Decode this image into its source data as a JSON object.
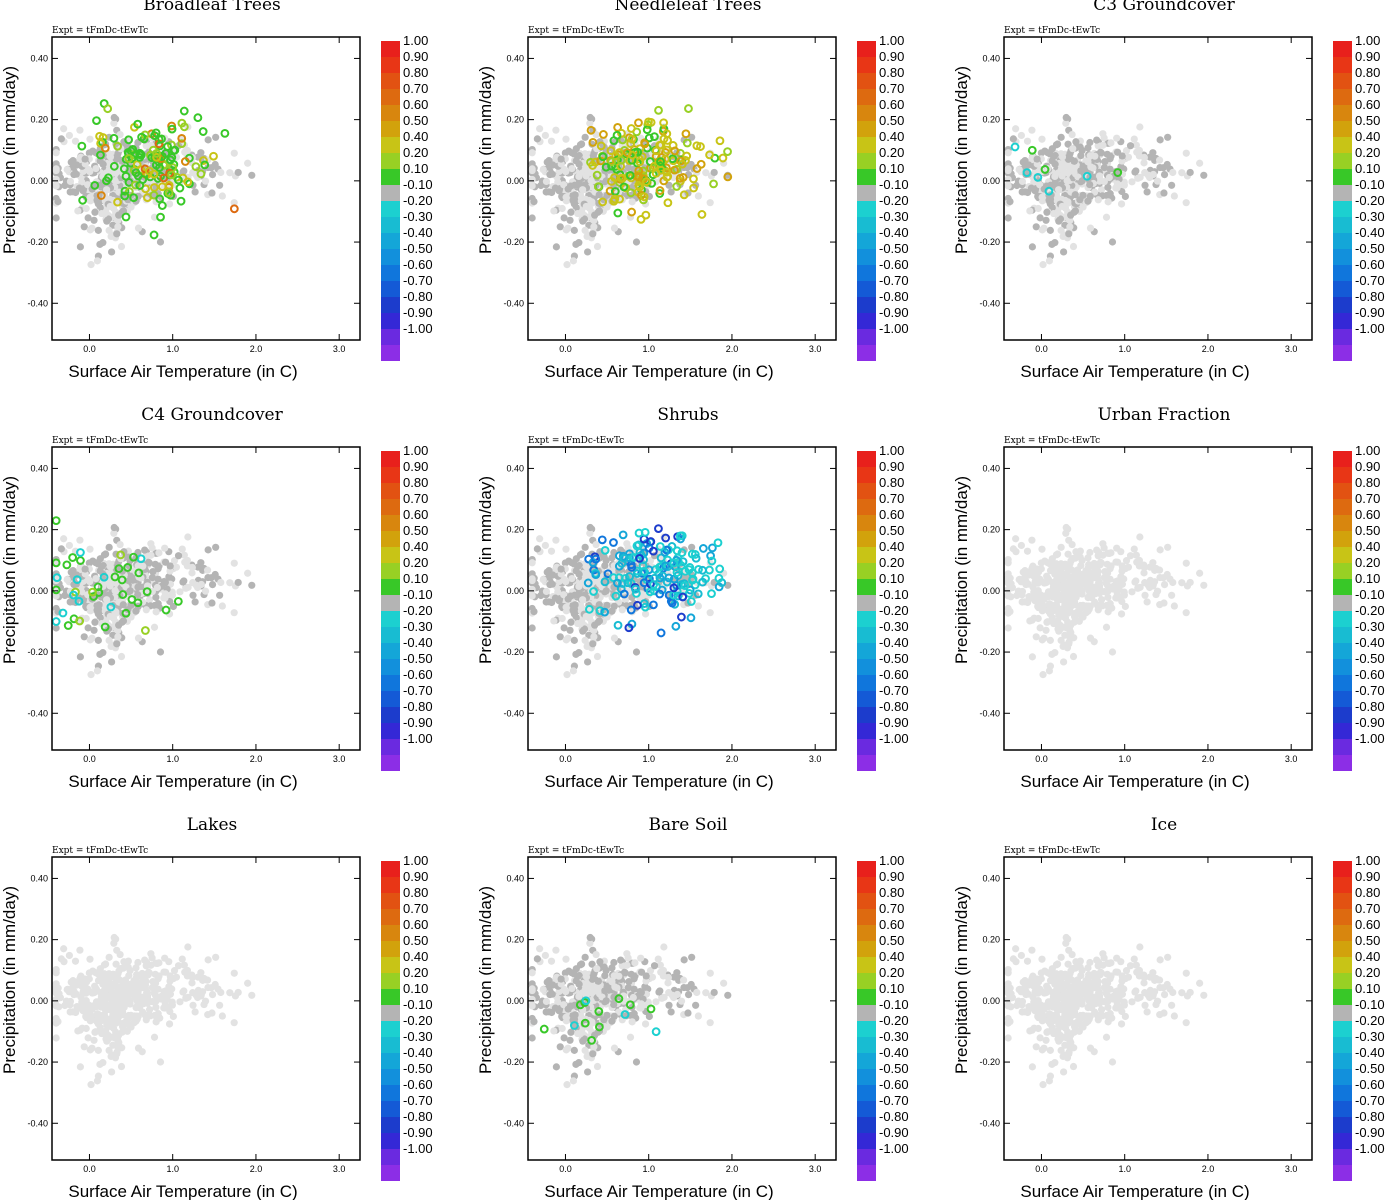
{
  "figure": {
    "expt_label": "Expt = tFmDc-tEwTc",
    "xlabel": "Surface Air Temperature (in C)",
    "ylabel": "Precipitation (in mm/day)",
    "xlim": [
      -0.45,
      3.25
    ],
    "ylim": [
      -0.52,
      0.47
    ],
    "xticks": [
      "0.0",
      "1.0",
      "2.0",
      "3.0"
    ],
    "yticks": [
      "0.40",
      "0.20",
      "0.00",
      "-0.20",
      "-0.40"
    ],
    "colorbar": {
      "labels": [
        "1.00",
        "0.90",
        "0.80",
        "0.70",
        "0.60",
        "0.50",
        "0.40",
        "0.20",
        "0.10",
        "-0.10",
        "-0.20",
        "-0.30",
        "-0.40",
        "-0.50",
        "-0.60",
        "-0.70",
        "-0.80",
        "-0.90",
        "-1.00"
      ],
      "colors": [
        "#e8201c",
        "#e83616",
        "#e25212",
        "#dd6a10",
        "#d8860e",
        "#d2a20c",
        "#c8c416",
        "#98d024",
        "#38c828",
        "#b4b4b4",
        "#1cd0d0",
        "#18bcd2",
        "#14a6d8",
        "#1290dc",
        "#1076dc",
        "#145ad6",
        "#1c3ccc",
        "#3428d6",
        "#6a2ae0",
        "#8c2ee6"
      ]
    },
    "colors": {
      "gray_light": "#e2e2e2",
      "gray_mid": "#b4b4b4",
      "frame": "#000000"
    }
  },
  "chart_data": [
    {
      "type": "scatter",
      "title": "Broadleaf Trees",
      "highlight": {
        "n": 140,
        "mode": "green-yellow",
        "cx": 0.75,
        "cy": 0.06
      }
    },
    {
      "type": "scatter",
      "title": "Needleleaf Trees",
      "highlight": {
        "n": 180,
        "mode": "yellow-green",
        "cx": 0.95,
        "cy": 0.06
      }
    },
    {
      "type": "scatter",
      "title": "C3 Groundcover",
      "highlight": {
        "n": 8,
        "mode": "few-green",
        "cx": 0.1,
        "cy": 0.03
      }
    },
    {
      "type": "scatter",
      "title": "C4 Groundcover",
      "highlight": {
        "n": 40,
        "mode": "green-left",
        "cx": 0.05,
        "cy": -0.02
      }
    },
    {
      "type": "scatter",
      "title": "Shrubs",
      "highlight": {
        "n": 170,
        "mode": "blue",
        "cx": 1.1,
        "cy": 0.06
      }
    },
    {
      "type": "scatter",
      "title": "Urban Fraction",
      "highlight": {
        "n": 0,
        "mode": "none",
        "cx": 0,
        "cy": 0
      }
    },
    {
      "type": "scatter",
      "title": "Lakes",
      "highlight": {
        "n": 0,
        "mode": "none",
        "cx": 0,
        "cy": 0
      }
    },
    {
      "type": "scatter",
      "title": "Bare Soil",
      "highlight": {
        "n": 14,
        "mode": "green-few",
        "cx": 0.35,
        "cy": -0.05
      }
    },
    {
      "type": "scatter",
      "title": "Ice",
      "highlight": {
        "n": 0,
        "mode": "none",
        "cx": 0,
        "cy": 0
      }
    }
  ]
}
